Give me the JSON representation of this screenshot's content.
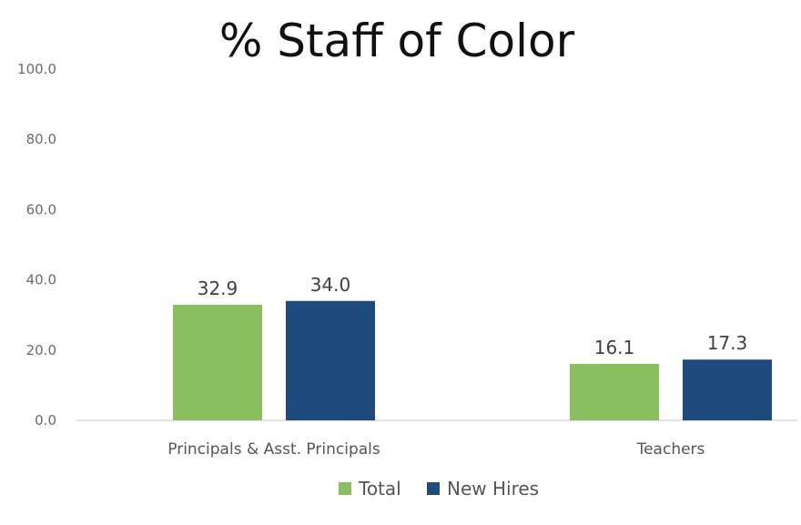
{
  "chart_data": {
    "type": "bar",
    "title": "% Staff of Color",
    "xlabel": "",
    "ylabel": "",
    "categories": [
      "Principals & Asst. Principals",
      "Teachers"
    ],
    "series": [
      {
        "name": "Total",
        "color": "#8abf5f",
        "values": [
          32.9,
          16.1
        ]
      },
      {
        "name": "New Hires",
        "color": "#1f4a7d",
        "values": [
          34.0,
          17.3
        ]
      }
    ],
    "data_labels": [
      [
        "32.9",
        "16.1"
      ],
      [
        "34.0",
        "17.3"
      ]
    ],
    "ylim": [
      0,
      100
    ],
    "yticks": [
      "100.0",
      "80.0",
      "60.0",
      "40.0",
      "20.0",
      "0.0"
    ],
    "ytick_values": [
      100,
      80,
      60,
      40,
      20,
      0
    ],
    "grid": false,
    "legend": "bottom"
  }
}
